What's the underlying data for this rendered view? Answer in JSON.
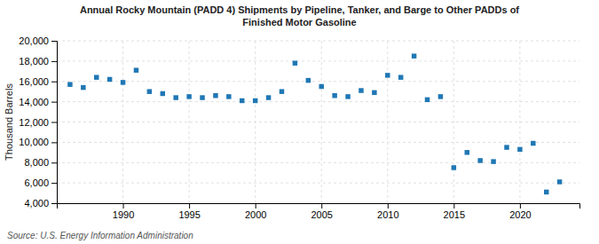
{
  "chart_data": {
    "type": "scatter",
    "title": "Annual Rocky Mountain (PADD 4) Shipments by Pipeline, Tanker, and Barge to Other PADDs of\nFinished Motor Gasoline",
    "ylabel": "Thousand Barrels",
    "source": "Source: U.S. Energy Information Administration",
    "x": [
      1986,
      1987,
      1988,
      1989,
      1990,
      1991,
      1992,
      1993,
      1994,
      1995,
      1996,
      1997,
      1998,
      1999,
      2000,
      2001,
      2002,
      2003,
      2004,
      2005,
      2006,
      2007,
      2008,
      2009,
      2010,
      2011,
      2012,
      2013,
      2014,
      2015,
      2016,
      2017,
      2018,
      2019,
      2020,
      2021,
      2022,
      2023
    ],
    "values": [
      15700,
      15400,
      16400,
      16200,
      15900,
      17100,
      15000,
      14800,
      14400,
      14500,
      14400,
      14600,
      14500,
      14100,
      14100,
      14400,
      15000,
      17800,
      16100,
      15500,
      14600,
      14500,
      15100,
      14900,
      16600,
      16400,
      18500,
      14200,
      14500,
      7500,
      9000,
      8200,
      8100,
      9500,
      9300,
      9900,
      5100,
      6100
    ],
    "xlim": [
      1985,
      2024.5
    ],
    "xticks": [
      1990,
      1995,
      2000,
      2005,
      2010,
      2015,
      2020
    ],
    "ylim": [
      4000,
      20000
    ],
    "yticks": [
      {
        "value": 4000,
        "label": "4,000"
      },
      {
        "value": 6000,
        "label": "6,000"
      },
      {
        "value": 8000,
        "label": "8,000"
      },
      {
        "value": 10000,
        "label": "10,000"
      },
      {
        "value": 12000,
        "label": "12,000"
      },
      {
        "value": 14000,
        "label": "14,000"
      },
      {
        "value": 16000,
        "label": "16,000"
      },
      {
        "value": 18000,
        "label": "18,000"
      },
      {
        "value": 20000,
        "label": "20,000"
      }
    ],
    "marker": "square",
    "grid": true
  }
}
